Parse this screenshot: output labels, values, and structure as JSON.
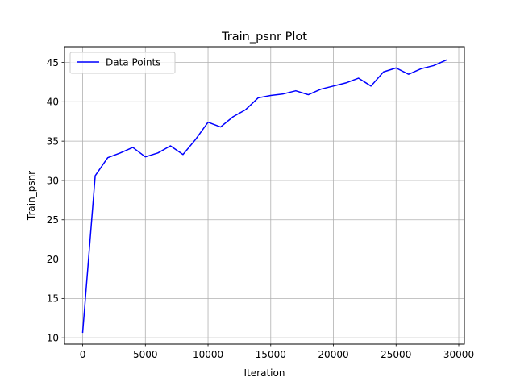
{
  "chart_data": {
    "type": "line",
    "title": "Train_psnr Plot",
    "xlabel": "Iteration",
    "ylabel": "Train_psnr",
    "xlim": [
      -1450,
      30450
    ],
    "ylim": [
      9.2,
      47.0
    ],
    "xticks": [
      0,
      5000,
      10000,
      15000,
      20000,
      25000,
      30000
    ],
    "xtick_labels": [
      "0",
      "5000",
      "10000",
      "15000",
      "20000",
      "25000",
      "30000"
    ],
    "yticks": [
      10,
      15,
      20,
      25,
      30,
      35,
      40,
      45
    ],
    "ytick_labels": [
      "10",
      "15",
      "20",
      "25",
      "30",
      "35",
      "40",
      "45"
    ],
    "grid": true,
    "legend_position": "upper left",
    "series": [
      {
        "name": "Data Points",
        "color": "#0000ff",
        "x": [
          0,
          1000,
          2000,
          3000,
          4000,
          5000,
          6000,
          7000,
          8000,
          9000,
          10000,
          11000,
          12000,
          13000,
          14000,
          15000,
          16000,
          17000,
          18000,
          19000,
          20000,
          21000,
          22000,
          23000,
          24000,
          25000,
          26000,
          27000,
          28000,
          29000
        ],
        "y": [
          10.7,
          30.6,
          32.9,
          33.5,
          34.2,
          33.0,
          33.5,
          34.4,
          33.3,
          35.2,
          37.4,
          36.8,
          38.1,
          39.0,
          40.5,
          40.8,
          41.0,
          41.4,
          40.9,
          41.6,
          42.0,
          42.4,
          43.0,
          42.0,
          43.8,
          44.3,
          43.5,
          44.2,
          44.6,
          45.3
        ]
      }
    ]
  }
}
